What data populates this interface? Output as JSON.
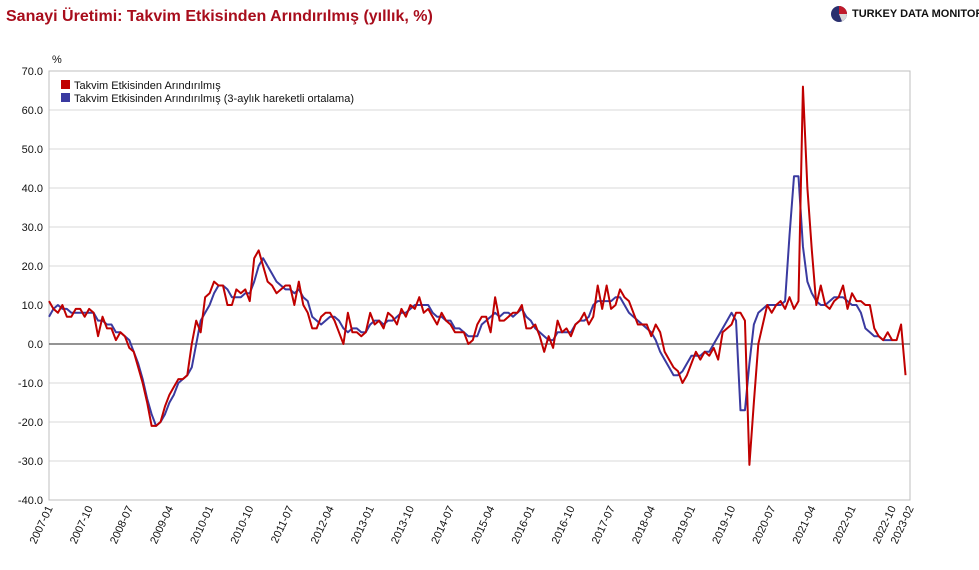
{
  "header": {
    "title": "Sanayi Üretimi: Takvim Etkisinden Arındırılmış (yıllık, %)",
    "brand": "TURKEY DATA MONITOR"
  },
  "colors": {
    "title": "#a80d1c",
    "series1": "#c00000",
    "series2": "#3a3aa0",
    "zero_line": "#555555",
    "grid": "#d9d9d9"
  },
  "chart_data": {
    "type": "line",
    "ylabel": "%",
    "ylim": [
      -40,
      70
    ],
    "yticks": [
      "70.0",
      "60.0",
      "50.0",
      "40.0",
      "30.0",
      "20.0",
      "10.0",
      "0.0",
      "-10.0",
      "-20.0",
      "-30.0",
      "-40.0"
    ],
    "xticks": [
      "2007-01",
      "2007-10",
      "2008-07",
      "2009-04",
      "2010-01",
      "2010-10",
      "2011-07",
      "2012-04",
      "2013-01",
      "2013-10",
      "2014-07",
      "2015-04",
      "2016-01",
      "2016-10",
      "2017-07",
      "2018-04",
      "2019-01",
      "2019-10",
      "2020-07",
      "2021-04",
      "2022-01",
      "2022-10",
      "2023-02"
    ],
    "x_start": "2007-01",
    "x_end": "2023-02",
    "grid": "horizontal",
    "legend_position": "top-left",
    "series": [
      {
        "name": "Takvim Etkisinden Arındırılmış",
        "values": [
          11,
          9,
          8,
          10,
          7,
          7,
          9,
          9,
          7,
          9,
          8,
          2,
          7,
          4,
          4,
          1,
          3,
          2,
          -1,
          -2,
          -6,
          -10,
          -15,
          -21,
          -21,
          -20,
          -16,
          -13,
          -11,
          -9,
          -9,
          -8,
          0,
          6,
          3,
          12,
          13,
          16,
          15,
          15,
          10,
          10,
          14,
          13,
          14,
          11,
          22,
          24,
          20,
          16,
          15,
          13,
          14,
          15,
          15,
          10,
          16,
          10,
          8,
          4,
          4,
          7,
          8,
          8,
          6,
          3,
          0,
          8,
          3,
          3,
          2,
          3,
          8,
          5,
          6,
          4,
          8,
          7,
          5,
          9,
          7,
          10,
          9,
          12,
          8,
          9,
          7,
          5,
          8,
          6,
          5,
          3,
          3,
          3,
          0,
          1,
          5,
          7,
          7,
          3,
          12,
          6,
          6,
          7,
          8,
          8,
          10,
          4,
          4,
          5,
          2,
          -2,
          2,
          -1,
          6,
          3,
          4,
          2,
          5,
          6,
          8,
          5,
          7,
          15,
          9,
          15,
          9,
          10,
          14,
          12,
          11,
          8,
          5,
          5,
          5,
          2,
          5,
          3,
          -2,
          -4,
          -6,
          -7,
          -10,
          -8,
          -5,
          -2,
          -4,
          -2,
          -3,
          -1,
          -4,
          3,
          4,
          5,
          8,
          8,
          6,
          -31,
          -15,
          0,
          5,
          10,
          8,
          10,
          11,
          9,
          12,
          9,
          11,
          66,
          40,
          24,
          10,
          15,
          10,
          9,
          11,
          12,
          15,
          9,
          13,
          11,
          11,
          10,
          10,
          4,
          2,
          1,
          3,
          1,
          1,
          5,
          -8
        ]
      },
      {
        "name": "Takvim Etkisinden Arındırılmış (3-aylık hareketli ortalama)",
        "values": [
          7,
          9,
          10,
          9,
          9,
          8,
          8,
          8,
          8,
          8,
          8,
          6,
          6,
          5,
          5,
          3,
          3,
          2,
          1,
          -2,
          -5,
          -9,
          -14,
          -18,
          -21,
          -20,
          -18,
          -15,
          -13,
          -10,
          -9,
          -8,
          -6,
          0,
          6,
          8,
          10,
          13,
          15,
          15,
          14,
          12,
          12,
          12,
          13,
          13,
          16,
          20,
          22,
          20,
          18,
          16,
          15,
          14,
          14,
          13,
          14,
          12,
          11,
          7,
          6,
          5,
          6,
          7,
          7,
          6,
          4,
          3,
          4,
          4,
          3,
          3,
          5,
          6,
          6,
          5,
          6,
          6,
          7,
          8,
          8,
          9,
          10,
          10,
          10,
          10,
          8,
          7,
          7,
          6,
          6,
          4,
          4,
          3,
          2,
          2,
          2,
          5,
          6,
          7,
          8,
          7,
          8,
          8,
          7,
          8,
          9,
          7,
          6,
          4,
          3,
          2,
          1,
          1,
          3,
          3,
          3,
          3,
          5,
          6,
          6,
          7,
          10,
          11,
          11,
          11,
          11,
          12,
          12,
          10,
          8,
          7,
          6,
          5,
          4,
          3,
          1,
          -2,
          -4,
          -6,
          -8,
          -8,
          -7,
          -5,
          -3,
          -3,
          -3,
          -2,
          -2,
          0,
          2,
          4,
          6,
          8,
          6,
          -17,
          -17,
          -5,
          5,
          8,
          9,
          10,
          10,
          10,
          10,
          11,
          28,
          43,
          43,
          25,
          16,
          13,
          11,
          10,
          10,
          11,
          12,
          12,
          12,
          11,
          10,
          10,
          8,
          4,
          3,
          2,
          2,
          1,
          1,
          1
        ]
      }
    ]
  }
}
